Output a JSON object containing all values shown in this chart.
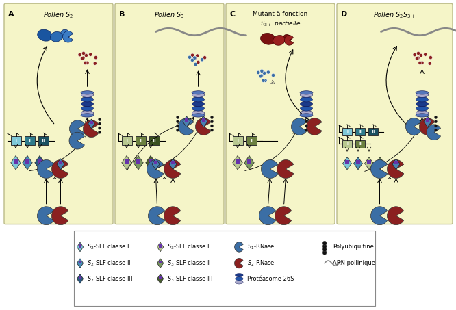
{
  "bg_color": "#F5F5C8",
  "border_color": "#BBBB88",
  "blue_rnase_color": "#3B6EA5",
  "red_rnase_color": "#8B2020",
  "dark_blue": "#1A3A7A",
  "mid_blue": "#2B5BA0",
  "gene_colors_A": [
    "#7EC8D8",
    "#2E7B8B",
    "#1A5060"
  ],
  "gene_colors_B": [
    "#B8C890",
    "#6B8040",
    "#3A5020"
  ],
  "gene_colors_C": [
    "#B8C890",
    "#6B8040"
  ],
  "gene_colors_D_top": [
    "#7EC8D8",
    "#2E7B8B",
    "#1A5060"
  ],
  "gene_colors_D_bot": [
    "#B8C890",
    "#6B8040"
  ],
  "slf_colors_A": [
    "#7EC8D8",
    "#4A90B8",
    "#2A5A80"
  ],
  "slf_colors_B": [
    "#B8C890",
    "#7A9860",
    "#4A6030"
  ],
  "slf_colors_C": [
    "#B8C890",
    "#7A9860"
  ],
  "slf_colors_D": [
    "#7EC8D8",
    "#4A90B8",
    "#B8C890",
    "#7A9860"
  ],
  "panel_labels": [
    "A",
    "B",
    "C",
    "D"
  ],
  "figure_width": 6.66,
  "figure_height": 4.53
}
